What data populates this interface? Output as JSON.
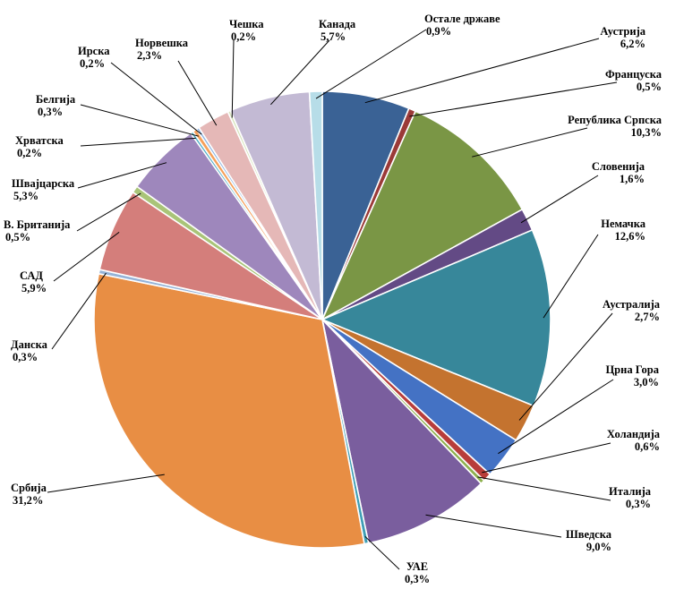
{
  "chart_data": {
    "type": "pie",
    "title": "",
    "start": "top",
    "direction": "clockwise",
    "slices": [
      {
        "name": "Аустрија",
        "value": 6.2,
        "label": "6,2%",
        "color": "#3A6295"
      },
      {
        "name": "Француска",
        "value": 0.5,
        "label": "0,5%",
        "color": "#9B3A38"
      },
      {
        "name": "Република Српска",
        "value": 10.3,
        "label": "10,3%",
        "color": "#7A9645"
      },
      {
        "name": "Словенија",
        "value": 1.6,
        "label": "1,6%",
        "color": "#634A85"
      },
      {
        "name": "Немачка",
        "value": 12.6,
        "label": "12,6%",
        "color": "#37879A"
      },
      {
        "name": "Аустралија",
        "value": 2.7,
        "label": "2,7%",
        "color": "#C4732F"
      },
      {
        "name": "Црна Гора",
        "value": 3.0,
        "label": "3,0%",
        "color": "#4472C4"
      },
      {
        "name": "Холандија",
        "value": 0.6,
        "label": "0,6%",
        "color": "#B83D3A"
      },
      {
        "name": "Италија",
        "value": 0.3,
        "label": "0,3%",
        "color": "#8EB14F"
      },
      {
        "name": "Шведска",
        "value": 9.0,
        "label": "9,0%",
        "color": "#7A5E9E"
      },
      {
        "name": "УАЕ",
        "value": 0.3,
        "label": "0,3%",
        "color": "#3E9EB5"
      },
      {
        "name": "Србија",
        "value": 31.2,
        "label": "31,2%",
        "color": "#E88E44"
      },
      {
        "name": "Данска",
        "value": 0.3,
        "label": "0,3%",
        "color": "#95B3D7"
      },
      {
        "name": "САД",
        "value": 5.9,
        "label": "5,9%",
        "color": "#D47E7B"
      },
      {
        "name": "В. Британија",
        "value": 0.5,
        "label": "0,5%",
        "color": "#A9C478"
      },
      {
        "name": "Швајцарска",
        "value": 5.3,
        "label": "5,3%",
        "color": "#9E87BC"
      },
      {
        "name": "Хрватска",
        "value": 0.2,
        "label": "0,2%",
        "color": "#4BACC6"
      },
      {
        "name": "Белгија",
        "value": 0.3,
        "label": "0,3%",
        "color": "#F5A05A"
      },
      {
        "name": "Ирска",
        "value": 0.2,
        "label": "0,2%",
        "color": "#8DB4E2"
      },
      {
        "name": "Норвешка",
        "value": 2.3,
        "label": "2,3%",
        "color": "#E5B8B7"
      },
      {
        "name": "Чешка",
        "value": 0.2,
        "label": "0,2%",
        "color": "#D7E4BD"
      },
      {
        "name": "Канада",
        "value": 5.7,
        "label": "5,7%",
        "color": "#C3BAD4"
      },
      {
        "name": "Остале државе",
        "value": 0.9,
        "label": "0,9%",
        "color": "#B7DDE8"
      }
    ]
  }
}
